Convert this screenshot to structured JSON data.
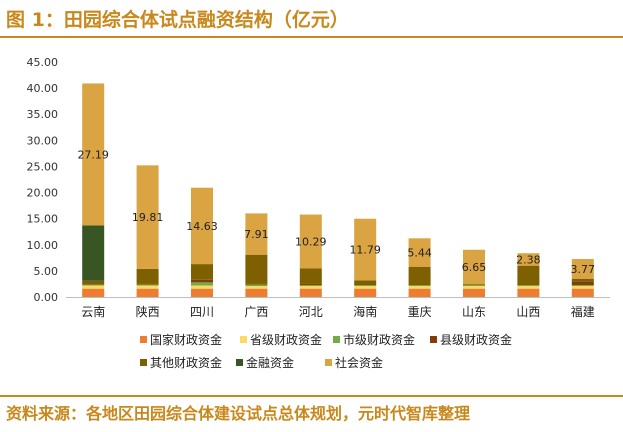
{
  "page": {
    "title": "图 1：田园综合体试点融资结构（亿元）",
    "source": "资料来源：各地区田园综合体建设试点总体规划，元时代智库整理"
  },
  "chart_data": {
    "type": "bar",
    "stacked": true,
    "title": "田园综合体试点融资结构（亿元）",
    "ylim": [
      0,
      45
    ],
    "yticks": [
      "0.00",
      "5.00",
      "10.00",
      "15.00",
      "20.00",
      "25.00",
      "30.00",
      "35.00",
      "40.00",
      "45.00"
    ],
    "categories": [
      "云南",
      "陕西",
      "四川",
      "广西",
      "河北",
      "海南",
      "重庆",
      "山东",
      "山西",
      "福建"
    ],
    "series": [
      {
        "name": "国家财政资金",
        "color": "#ed7d31",
        "values": [
          1.6,
          1.6,
          1.6,
          1.6,
          1.6,
          1.6,
          1.6,
          1.6,
          1.6,
          1.6
        ]
      },
      {
        "name": "省级财政资金",
        "color": "#ffd966",
        "values": [
          0.6,
          0.6,
          0.6,
          0.5,
          0.5,
          0.5,
          0.5,
          0.5,
          0.5,
          0.5
        ]
      },
      {
        "name": "市级财政资金",
        "color": "#70ad47",
        "values": [
          0.2,
          0.2,
          0.6,
          0.3,
          0.2,
          0.2,
          0.2,
          0.2,
          0.2,
          0.2
        ]
      },
      {
        "name": "县级财政资金",
        "color": "#843c0c",
        "values": [
          0.2,
          0.1,
          0.5,
          0.1,
          0.2,
          0.1,
          0.1,
          0.1,
          0.1,
          0.7
        ]
      },
      {
        "name": "其他财政资金",
        "color": "#7f6000",
        "values": [
          0.5,
          2.9,
          3.0,
          5.6,
          3.0,
          0.8,
          3.4,
          0.0,
          3.6,
          0.5
        ]
      },
      {
        "name": "金融资金",
        "color": "#375623",
        "values": [
          10.6,
          0.0,
          0.0,
          0.0,
          0.0,
          0.0,
          0.0,
          0.0,
          0.0,
          0.0
        ]
      },
      {
        "name": "社会资金",
        "color": "#d9a441",
        "values": [
          27.19,
          19.81,
          14.63,
          7.91,
          10.29,
          11.79,
          5.44,
          6.65,
          2.38,
          3.77
        ]
      }
    ],
    "data_labels": [
      "27.19",
      "19.81",
      "14.63",
      "7.91",
      "10.29",
      "11.79",
      "5.44",
      "6.65",
      "2.38",
      "3.77"
    ],
    "legend_position": "bottom"
  }
}
